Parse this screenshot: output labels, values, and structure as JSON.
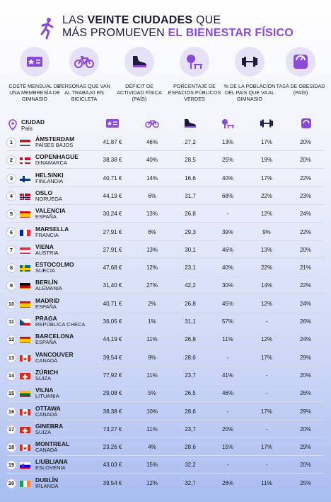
{
  "title": {
    "line1_pre": "LAS ",
    "line1_bold": "VEINTE CIUDADES",
    "line1_post": " QUE",
    "line2_pre": "MÁS PROMUEVEN ",
    "line2_accent": "EL BIENESTAR FÍSICO"
  },
  "colors": {
    "accent": "#8b49d8",
    "icon_bg": "#e6e1f7",
    "dark": "#1d1a3b"
  },
  "metrics": [
    {
      "icon": "membership-card-icon",
      "label": "COSTE MENSUAL DE UNA MEMBRESÍA DE GIMNASIO"
    },
    {
      "icon": "bicycle-icon",
      "label": "PERSONAS QUE VAN AL TRABAJO EN BICICLETA"
    },
    {
      "icon": "sneaker-icon",
      "label": "DÉFICIT DE ACTIVIDAD FÍSICA (PAÍS)"
    },
    {
      "icon": "park-tree-bench-icon",
      "label": "PORCENTAJE DE ESPACIOS PÚBLICOS VERDES"
    },
    {
      "icon": "dumbbell-icon",
      "label": "% DE LA POBLACIÓN DEL PAÍS QUE VA AL GIMNASIO"
    },
    {
      "icon": "scale-icon",
      "label": "TASA DE OBESIDAD (PAÍS)"
    }
  ],
  "header": {
    "city": "CIUDAD",
    "country": "País"
  },
  "rows": [
    {
      "rank": "1",
      "city": "ÁMSTERDAM",
      "country": "PAÍSES BAJOS",
      "flag": "nl",
      "gym": "41,87 €",
      "bike": "46%",
      "deficit": "27,2",
      "green": "13%",
      "gympct": "17%",
      "obesity": "20%"
    },
    {
      "rank": "2",
      "city": "COPENHAGUE",
      "country": "DINAMARCA",
      "flag": "dk",
      "gym": "38,38 €",
      "bike": "40%",
      "deficit": "28,5",
      "green": "25%",
      "gympct": "19%",
      "obesity": "20%"
    },
    {
      "rank": "3",
      "city": "HELSINKI",
      "country": "FINLANDIA",
      "flag": "fi",
      "gym": "40,71 €",
      "bike": "14%",
      "deficit": "16,6",
      "green": "40%",
      "gympct": "17%",
      "obesity": "22%"
    },
    {
      "rank": "4",
      "city": "OSLO",
      "country": "NORUEGA",
      "flag": "no",
      "gym": "44,19 €",
      "bike": "6%",
      "deficit": "31,7",
      "green": "68%",
      "gympct": "22%",
      "obesity": "23%"
    },
    {
      "rank": "5",
      "city": "VALENCIA",
      "country": "ESPAÑA",
      "flag": "es",
      "gym": "30,24 €",
      "bike": "13%",
      "deficit": "26,8",
      "green": "-",
      "gympct": "12%",
      "obesity": "24%"
    },
    {
      "rank": "6",
      "city": "MARSELLA",
      "country": "FRANCIA",
      "flag": "fr",
      "gym": "27,91 €",
      "bike": "6%",
      "deficit": "29,3",
      "green": "39%",
      "gympct": "9%",
      "obesity": "22%"
    },
    {
      "rank": "7",
      "city": "VIENA",
      "country": "AUSTRIA",
      "flag": "at",
      "gym": "27,91 €",
      "bike": "13%",
      "deficit": "30,1",
      "green": "46%",
      "gympct": "13%",
      "obesity": "20%"
    },
    {
      "rank": "8",
      "city": "ESTOCOLMO",
      "country": "SUECIA",
      "flag": "se",
      "gym": "47,68 €",
      "bike": "12%",
      "deficit": "23,1",
      "green": "40%",
      "gympct": "22%",
      "obesity": "21%"
    },
    {
      "rank": "9",
      "city": "BERLÍN",
      "country": "ALEMANIA",
      "flag": "de",
      "gym": "31,40 €",
      "bike": "27%",
      "deficit": "42,2",
      "green": "30%",
      "gympct": "14%",
      "obesity": "22%"
    },
    {
      "rank": "10",
      "city": "MADRID",
      "country": "ESPAÑA",
      "flag": "es",
      "gym": "40,71 €",
      "bike": "2%",
      "deficit": "26,8",
      "green": "45%",
      "gympct": "12%",
      "obesity": "24%"
    },
    {
      "rank": "11",
      "city": "PRAGA",
      "country": "REPÚBLICA CHECA",
      "flag": "cz",
      "gym": "36,05 €",
      "bike": "1%",
      "deficit": "31,1",
      "green": "57%",
      "gympct": "-",
      "obesity": "26%"
    },
    {
      "rank": "12",
      "city": "BARCELONA",
      "country": "ESPAÑA",
      "flag": "es",
      "gym": "44,19 €",
      "bike": "11%",
      "deficit": "26,8",
      "green": "11%",
      "gympct": "12%",
      "obesity": "24%"
    },
    {
      "rank": "13",
      "city": "VANCOUVER",
      "country": "CANADÁ",
      "flag": "ca",
      "gym": "39,54 €",
      "bike": "9%",
      "deficit": "28,6",
      "green": "-",
      "gympct": "17%",
      "obesity": "29%"
    },
    {
      "rank": "14",
      "city": "ZÚRICH",
      "country": "SUIZA",
      "flag": "ch",
      "gym": "77,92 €",
      "bike": "11%",
      "deficit": "23,7",
      "green": "41%",
      "gympct": "-",
      "obesity": "20%"
    },
    {
      "rank": "15",
      "city": "VILNA",
      "country": "LITUANIA",
      "flag": "lt",
      "gym": "29,08 €",
      "bike": "5%",
      "deficit": "26,5",
      "green": "46%",
      "gympct": "-",
      "obesity": "26%"
    },
    {
      "rank": "16",
      "city": "OTTAWA",
      "country": "CANADÁ",
      "flag": "ca",
      "gym": "38,38 €",
      "bike": "10%",
      "deficit": "28,6",
      "green": "-",
      "gympct": "17%",
      "obesity": "29%"
    },
    {
      "rank": "17",
      "city": "GINEBRA",
      "country": "SUIZA",
      "flag": "ch",
      "gym": "73,27 €",
      "bike": "11%",
      "deficit": "23,7",
      "green": "20%",
      "gympct": "-",
      "obesity": "20%"
    },
    {
      "rank": "18",
      "city": "MONTREAL",
      "country": "CANADÁ",
      "flag": "ca",
      "gym": "23,26 €",
      "bike": "4%",
      "deficit": "28,6",
      "green": "15%",
      "gympct": "17%",
      "obesity": "29%"
    },
    {
      "rank": "19",
      "city": "LIUBLIANA",
      "country": "ESLOVENIA",
      "flag": "si",
      "gym": "43,03 €",
      "bike": "15%",
      "deficit": "32,2",
      "green": "-",
      "gympct": "-",
      "obesity": "20%"
    },
    {
      "rank": "20",
      "city": "DUBLÍN",
      "country": "IRLANDA",
      "flag": "ie",
      "gym": "39,54 €",
      "bike": "12%",
      "deficit": "32,7",
      "green": "26%",
      "gympct": "11%",
      "obesity": "25%"
    }
  ]
}
